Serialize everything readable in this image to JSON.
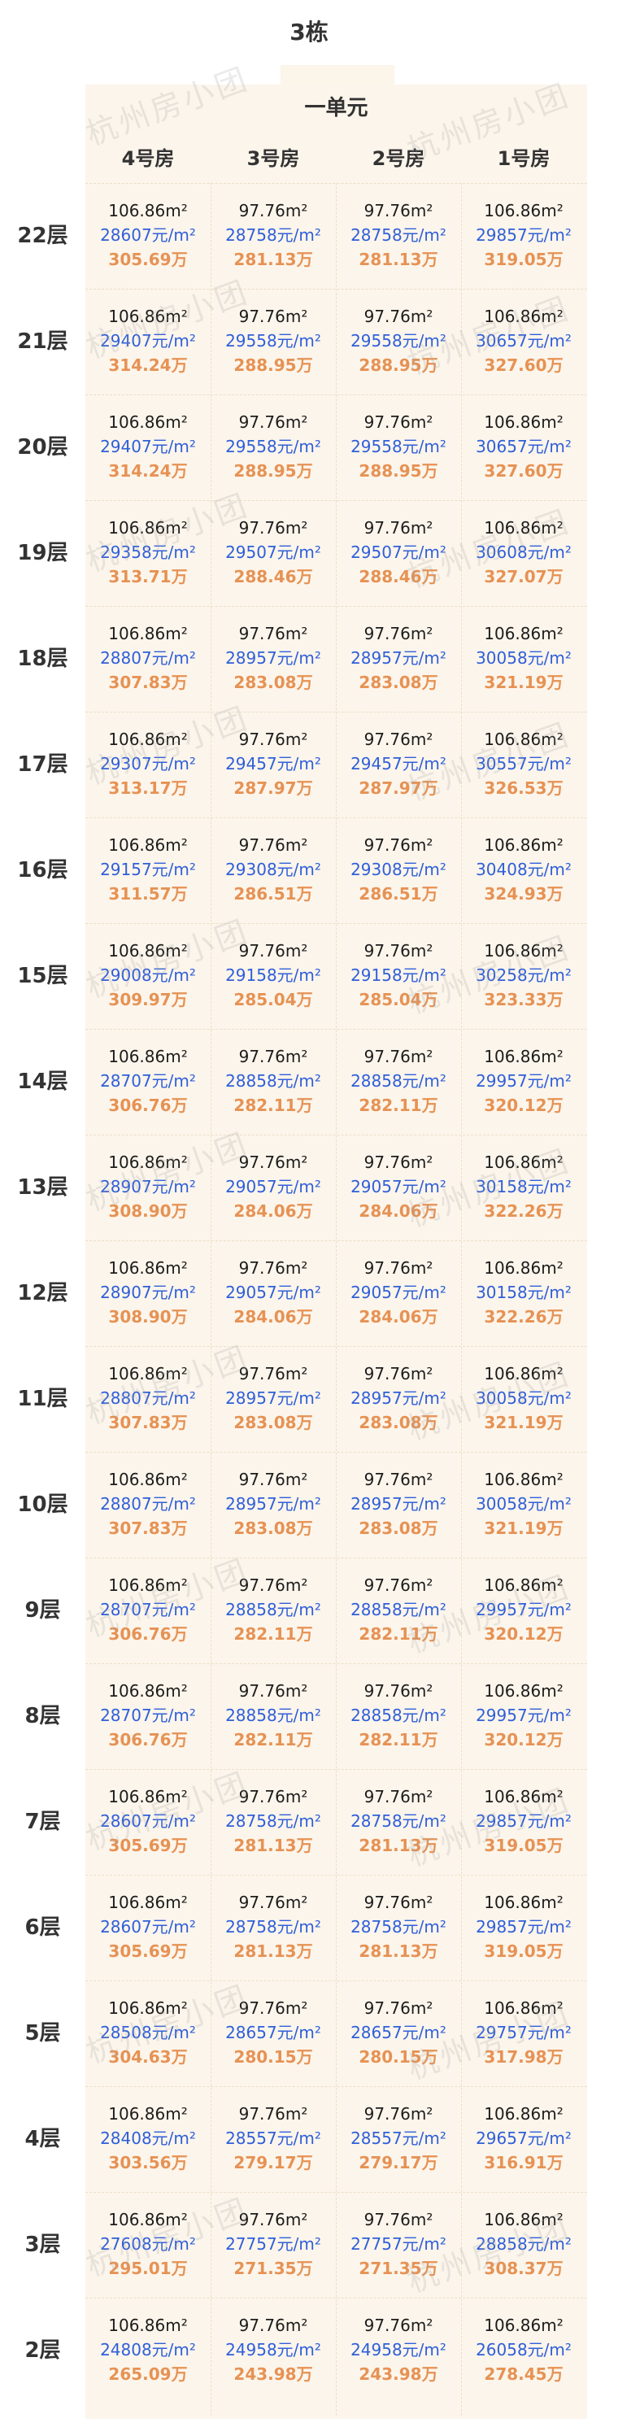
{
  "title": "3栋",
  "unit": "一单元",
  "watermark": "杭州房小团",
  "columns": [
    "4号房",
    "3号房",
    "2号房",
    "1号房"
  ],
  "colors": {
    "price_per_sqm": "#2f5fd9",
    "total_price": "#e69254",
    "area": "#1c1c1c",
    "sheet_background": "#fcf5eb"
  },
  "rows": [
    {
      "floor": "22层",
      "cells": [
        {
          "area": "106.86m²",
          "price": "28607元/m²",
          "total": "305.69万"
        },
        {
          "area": "97.76m²",
          "price": "28758元/m²",
          "total": "281.13万"
        },
        {
          "area": "97.76m²",
          "price": "28758元/m²",
          "total": "281.13万"
        },
        {
          "area": "106.86m²",
          "price": "29857元/m²",
          "total": "319.05万"
        }
      ]
    },
    {
      "floor": "21层",
      "cells": [
        {
          "area": "106.86m²",
          "price": "29407元/m²",
          "total": "314.24万"
        },
        {
          "area": "97.76m²",
          "price": "29558元/m²",
          "total": "288.95万"
        },
        {
          "area": "97.76m²",
          "price": "29558元/m²",
          "total": "288.95万"
        },
        {
          "area": "106.86m²",
          "price": "30657元/m²",
          "total": "327.60万"
        }
      ]
    },
    {
      "floor": "20层",
      "cells": [
        {
          "area": "106.86m²",
          "price": "29407元/m²",
          "total": "314.24万"
        },
        {
          "area": "97.76m²",
          "price": "29558元/m²",
          "total": "288.95万"
        },
        {
          "area": "97.76m²",
          "price": "29558元/m²",
          "total": "288.95万"
        },
        {
          "area": "106.86m²",
          "price": "30657元/m²",
          "total": "327.60万"
        }
      ]
    },
    {
      "floor": "19层",
      "cells": [
        {
          "area": "106.86m²",
          "price": "29358元/m²",
          "total": "313.71万"
        },
        {
          "area": "97.76m²",
          "price": "29507元/m²",
          "total": "288.46万"
        },
        {
          "area": "97.76m²",
          "price": "29507元/m²",
          "total": "288.46万"
        },
        {
          "area": "106.86m²",
          "price": "30608元/m²",
          "total": "327.07万"
        }
      ]
    },
    {
      "floor": "18层",
      "cells": [
        {
          "area": "106.86m²",
          "price": "28807元/m²",
          "total": "307.83万"
        },
        {
          "area": "97.76m²",
          "price": "28957元/m²",
          "total": "283.08万"
        },
        {
          "area": "97.76m²",
          "price": "28957元/m²",
          "total": "283.08万"
        },
        {
          "area": "106.86m²",
          "price": "30058元/m²",
          "total": "321.19万"
        }
      ]
    },
    {
      "floor": "17层",
      "cells": [
        {
          "area": "106.86m²",
          "price": "29307元/m²",
          "total": "313.17万"
        },
        {
          "area": "97.76m²",
          "price": "29457元/m²",
          "total": "287.97万"
        },
        {
          "area": "97.76m²",
          "price": "29457元/m²",
          "total": "287.97万"
        },
        {
          "area": "106.86m²",
          "price": "30557元/m²",
          "total": "326.53万"
        }
      ]
    },
    {
      "floor": "16层",
      "cells": [
        {
          "area": "106.86m²",
          "price": "29157元/m²",
          "total": "311.57万"
        },
        {
          "area": "97.76m²",
          "price": "29308元/m²",
          "total": "286.51万"
        },
        {
          "area": "97.76m²",
          "price": "29308元/m²",
          "total": "286.51万"
        },
        {
          "area": "106.86m²",
          "price": "30408元/m²",
          "total": "324.93万"
        }
      ]
    },
    {
      "floor": "15层",
      "cells": [
        {
          "area": "106.86m²",
          "price": "29008元/m²",
          "total": "309.97万"
        },
        {
          "area": "97.76m²",
          "price": "29158元/m²",
          "total": "285.04万"
        },
        {
          "area": "97.76m²",
          "price": "29158元/m²",
          "total": "285.04万"
        },
        {
          "area": "106.86m²",
          "price": "30258元/m²",
          "total": "323.33万"
        }
      ]
    },
    {
      "floor": "14层",
      "cells": [
        {
          "area": "106.86m²",
          "price": "28707元/m²",
          "total": "306.76万"
        },
        {
          "area": "97.76m²",
          "price": "28858元/m²",
          "total": "282.11万"
        },
        {
          "area": "97.76m²",
          "price": "28858元/m²",
          "total": "282.11万"
        },
        {
          "area": "106.86m²",
          "price": "29957元/m²",
          "total": "320.12万"
        }
      ]
    },
    {
      "floor": "13层",
      "cells": [
        {
          "area": "106.86m²",
          "price": "28907元/m²",
          "total": "308.90万"
        },
        {
          "area": "97.76m²",
          "price": "29057元/m²",
          "total": "284.06万"
        },
        {
          "area": "97.76m²",
          "price": "29057元/m²",
          "total": "284.06万"
        },
        {
          "area": "106.86m²",
          "price": "30158元/m²",
          "total": "322.26万"
        }
      ]
    },
    {
      "floor": "12层",
      "cells": [
        {
          "area": "106.86m²",
          "price": "28907元/m²",
          "total": "308.90万"
        },
        {
          "area": "97.76m²",
          "price": "29057元/m²",
          "total": "284.06万"
        },
        {
          "area": "97.76m²",
          "price": "29057元/m²",
          "total": "284.06万"
        },
        {
          "area": "106.86m²",
          "price": "30158元/m²",
          "total": "322.26万"
        }
      ]
    },
    {
      "floor": "11层",
      "cells": [
        {
          "area": "106.86m²",
          "price": "28807元/m²",
          "total": "307.83万"
        },
        {
          "area": "97.76m²",
          "price": "28957元/m²",
          "total": "283.08万"
        },
        {
          "area": "97.76m²",
          "price": "28957元/m²",
          "total": "283.08万"
        },
        {
          "area": "106.86m²",
          "price": "30058元/m²",
          "total": "321.19万"
        }
      ]
    },
    {
      "floor": "10层",
      "cells": [
        {
          "area": "106.86m²",
          "price": "28807元/m²",
          "total": "307.83万"
        },
        {
          "area": "97.76m²",
          "price": "28957元/m²",
          "total": "283.08万"
        },
        {
          "area": "97.76m²",
          "price": "28957元/m²",
          "total": "283.08万"
        },
        {
          "area": "106.86m²",
          "price": "30058元/m²",
          "total": "321.19万"
        }
      ]
    },
    {
      "floor": "9层",
      "cells": [
        {
          "area": "106.86m²",
          "price": "28707元/m²",
          "total": "306.76万"
        },
        {
          "area": "97.76m²",
          "price": "28858元/m²",
          "total": "282.11万"
        },
        {
          "area": "97.76m²",
          "price": "28858元/m²",
          "total": "282.11万"
        },
        {
          "area": "106.86m²",
          "price": "29957元/m²",
          "total": "320.12万"
        }
      ]
    },
    {
      "floor": "8层",
      "cells": [
        {
          "area": "106.86m²",
          "price": "28707元/m²",
          "total": "306.76万"
        },
        {
          "area": "97.76m²",
          "price": "28858元/m²",
          "total": "282.11万"
        },
        {
          "area": "97.76m²",
          "price": "28858元/m²",
          "total": "282.11万"
        },
        {
          "area": "106.86m²",
          "price": "29957元/m²",
          "total": "320.12万"
        }
      ]
    },
    {
      "floor": "7层",
      "cells": [
        {
          "area": "106.86m²",
          "price": "28607元/m²",
          "total": "305.69万"
        },
        {
          "area": "97.76m²",
          "price": "28758元/m²",
          "total": "281.13万"
        },
        {
          "area": "97.76m²",
          "price": "28758元/m²",
          "total": "281.13万"
        },
        {
          "area": "106.86m²",
          "price": "29857元/m²",
          "total": "319.05万"
        }
      ]
    },
    {
      "floor": "6层",
      "cells": [
        {
          "area": "106.86m²",
          "price": "28607元/m²",
          "total": "305.69万"
        },
        {
          "area": "97.76m²",
          "price": "28758元/m²",
          "total": "281.13万"
        },
        {
          "area": "97.76m²",
          "price": "28758元/m²",
          "total": "281.13万"
        },
        {
          "area": "106.86m²",
          "price": "29857元/m²",
          "total": "319.05万"
        }
      ]
    },
    {
      "floor": "5层",
      "cells": [
        {
          "area": "106.86m²",
          "price": "28508元/m²",
          "total": "304.63万"
        },
        {
          "area": "97.76m²",
          "price": "28657元/m²",
          "total": "280.15万"
        },
        {
          "area": "97.76m²",
          "price": "28657元/m²",
          "total": "280.15万"
        },
        {
          "area": "106.86m²",
          "price": "29757元/m²",
          "total": "317.98万"
        }
      ]
    },
    {
      "floor": "4层",
      "cells": [
        {
          "area": "106.86m²",
          "price": "28408元/m²",
          "total": "303.56万"
        },
        {
          "area": "97.76m²",
          "price": "28557元/m²",
          "total": "279.17万"
        },
        {
          "area": "97.76m²",
          "price": "28557元/m²",
          "total": "279.17万"
        },
        {
          "area": "106.86m²",
          "price": "29657元/m²",
          "total": "316.91万"
        }
      ]
    },
    {
      "floor": "3层",
      "cells": [
        {
          "area": "106.86m²",
          "price": "27608元/m²",
          "total": "295.01万"
        },
        {
          "area": "97.76m²",
          "price": "27757元/m²",
          "total": "271.35万"
        },
        {
          "area": "97.76m²",
          "price": "27757元/m²",
          "total": "271.35万"
        },
        {
          "area": "106.86m²",
          "price": "28858元/m²",
          "total": "308.37万"
        }
      ]
    },
    {
      "floor": "2层",
      "cells": [
        {
          "area": "106.86m²",
          "price": "24808元/m²",
          "total": "265.09万"
        },
        {
          "area": "97.76m²",
          "price": "24958元/m²",
          "total": "243.98万"
        },
        {
          "area": "97.76m²",
          "price": "24958元/m²",
          "total": "243.98万"
        },
        {
          "area": "106.86m²",
          "price": "26058元/m²",
          "total": "278.45万"
        }
      ]
    }
  ]
}
